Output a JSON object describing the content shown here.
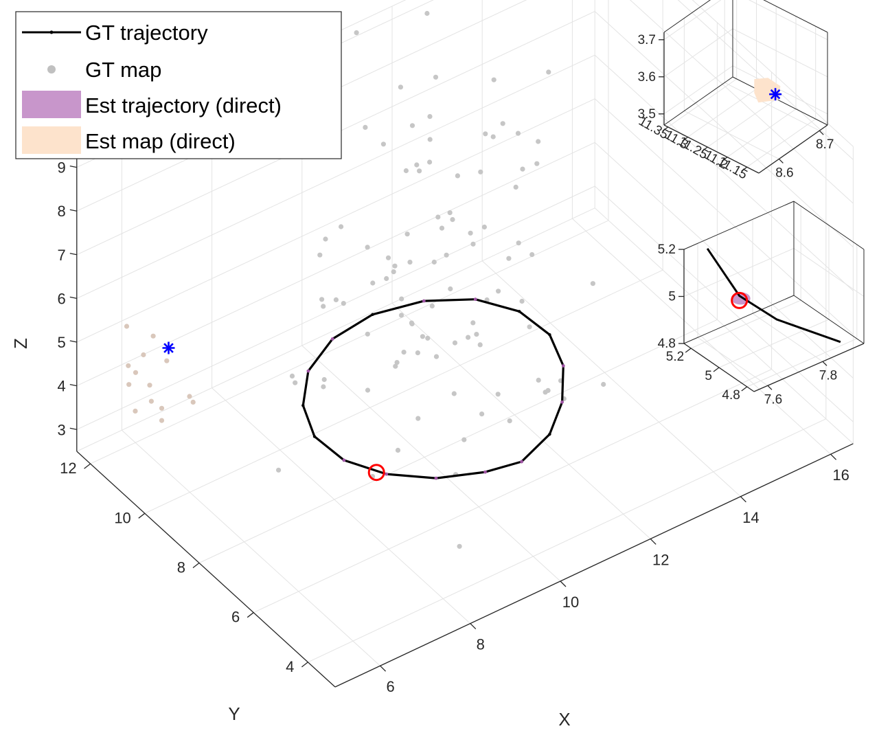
{
  "chart_data": [
    {
      "type": "scatter3d",
      "title": "",
      "xlabel": "X",
      "ylabel": "Y",
      "zlabel": "Z",
      "xlim": [
        5,
        16.5
      ],
      "ylim": [
        3,
        12.5
      ],
      "zlim": [
        2.5,
        9.3
      ],
      "xticks": [
        6,
        8,
        10,
        12,
        14,
        16
      ],
      "yticks": [
        4,
        6,
        8,
        10,
        12
      ],
      "zticks": [
        3,
        4,
        5,
        6,
        7,
        8,
        9
      ],
      "grid": true,
      "legend_position": "top-left",
      "legend": [
        {
          "label": "GT trajectory",
          "style": "line-dot",
          "color": "#000000"
        },
        {
          "label": "GT map",
          "style": "dot",
          "color": "#c0c0c0"
        },
        {
          "label": "Est trajectory (direct)",
          "style": "patch",
          "color": "#c896cb"
        },
        {
          "label": "Est map (direct)",
          "style": "patch",
          "color": "#fde3cc"
        }
      ],
      "series": [
        {
          "name": "GT trajectory",
          "points": [
            [
              10.3,
              4.92,
              4.0
            ],
            [
              9.6,
              5.1,
              4.0
            ],
            [
              8.78,
              5.55,
              4.0
            ],
            [
              8.12,
              6.28,
              4.0
            ],
            [
              7.72,
              7.18,
              4.0
            ],
            [
              7.67,
              8.18,
              4.0
            ],
            [
              8.0,
              9.15,
              4.0
            ],
            [
              8.63,
              10.0,
              4.0
            ],
            [
              9.5,
              10.55,
              4.0
            ],
            [
              10.48,
              10.7,
              4.0
            ],
            [
              11.45,
              10.42,
              4.0
            ],
            [
              12.23,
              9.82,
              4.0
            ],
            [
              12.68,
              8.95,
              4.0
            ],
            [
              12.75,
              7.95,
              4.0
            ],
            [
              12.45,
              6.95,
              4.0
            ],
            [
              11.85,
              6.0,
              4.0
            ],
            [
              11.15,
              5.3,
              4.0
            ],
            [
              10.3,
              4.92,
              4.0
            ]
          ]
        },
        {
          "name": "GT map",
          "points": [
            [
              11.83,
              10.22,
              4.98
            ],
            [
              9.29,
              10.46,
              6.44
            ],
            [
              10.98,
              11.02,
              4.4
            ],
            [
              9.76,
              10.85,
              4.6
            ],
            [
              10.96,
              7.48,
              3.32
            ],
            [
              11.09,
              9.52,
              4.57
            ],
            [
              6.9,
              7.62,
              5.92
            ],
            [
              8.92,
              4.92,
              2.73
            ],
            [
              12.92,
              10.63,
              4.86
            ],
            [
              11.94,
              10.26,
              4.13
            ],
            [
              11.0,
              11.83,
              7.39
            ],
            [
              10.02,
              9.12,
              6.23
            ],
            [
              12.07,
              6.88,
              3.66
            ],
            [
              13.72,
              11.06,
              3.51
            ],
            [
              11.31,
              8.12,
              4.37
            ],
            [
              9.5,
              9.07,
              6.12
            ],
            [
              13.88,
              10.29,
              6.04
            ],
            [
              11.99,
              12.17,
              7.64
            ],
            [
              14.03,
              8.48,
              4.25
            ],
            [
              9.85,
              8.76,
              4.31
            ],
            [
              14.35,
              10.64,
              7.71
            ],
            [
              11.72,
              11.29,
              7.39
            ],
            [
              11.08,
              9.29,
              6.74
            ],
            [
              13.21,
              9.36,
              4.81
            ],
            [
              13.05,
              11.26,
              4.05
            ],
            [
              11.81,
              10.06,
              6.05
            ],
            [
              9.24,
              5.59,
              3.84
            ],
            [
              9.31,
              8.95,
              7.1
            ],
            [
              11.93,
              10.99,
              7.14
            ],
            [
              12.05,
              9.33,
              7.28
            ],
            [
              14.6,
              12.01,
              4.59
            ],
            [
              11.18,
              11.28,
              4.63
            ],
            [
              10.13,
              8.28,
              5.04
            ],
            [
              10.9,
              9.05,
              3.77
            ],
            [
              9.26,
              7.84,
              5.03
            ],
            [
              12.02,
              6.33,
              4.22
            ],
            [
              9.14,
              10.42,
              6.17
            ],
            [
              12.93,
              6.27,
              3.73
            ],
            [
              9.28,
              7.04,
              4.28
            ],
            [
              11.7,
              8.1,
              5.42
            ],
            [
              9.35,
              9.99,
              6.96
            ],
            [
              13.51,
              9.63,
              7.1
            ],
            [
              12.99,
              9.59,
              6.33
            ],
            [
              11.23,
              6.9,
              3.36
            ],
            [
              14.26,
              11.61,
              5.8
            ],
            [
              9.34,
              10.68,
              4.91
            ],
            [
              12.05,
              9.48,
              3.48
            ],
            [
              13.06,
              10.54,
              6.91
            ],
            [
              12.29,
              6.66,
              3.49
            ],
            [
              12.75,
              8.69,
              3.76
            ],
            [
              11.91,
              12.67,
              6.09
            ],
            [
              11.36,
              12.75,
              8.86
            ],
            [
              11.93,
              9.41,
              3.84
            ],
            [
              9.8,
              8.51,
              5.93
            ],
            [
              10.86,
              8.3,
              4.53
            ],
            [
              12.74,
              12.44,
              8.81
            ],
            [
              10.87,
              10.07,
              6.01
            ],
            [
              12.25,
              7.53,
              3.44
            ],
            [
              10.6,
              7.9,
              3.72
            ],
            [
              10.64,
              8.94,
              4.38
            ],
            [
              9.34,
              8.99,
              3.79
            ],
            [
              8.11,
              8.55,
              4.88
            ],
            [
              7.38,
              8.52,
              5.33
            ],
            [
              13.6,
              10.5,
              4.24
            ],
            [
              10.28,
              9.31,
              4.87
            ],
            [
              8.58,
              6.62,
              4.13
            ],
            [
              12.3,
              9.51,
              4.13
            ],
            [
              11.29,
              7.43,
              3.64
            ],
            [
              12.31,
              7.38,
              3.22
            ],
            [
              11.88,
              10.47,
              5.43
            ],
            [
              12.72,
              12.09,
              7.56
            ],
            [
              8.5,
              9.23,
              4.14
            ],
            [
              6.75,
              7.98,
              3.79
            ],
            [
              8.92,
              8.3,
              5.67
            ],
            [
              12.76,
              12.37,
              6.48
            ],
            [
              13.48,
              11.21,
              7.63
            ],
            [
              12.5,
              11.95,
              5.8
            ],
            [
              10.13,
              8.97,
              4.29
            ],
            [
              11.65,
              9.04,
              6.24
            ],
            [
              9.39,
              10.71,
              4.71
            ],
            [
              12.06,
              10.19,
              6.7
            ],
            [
              12.23,
              11.88,
              5.77
            ],
            [
              13.66,
              11.82,
              5.96
            ],
            [
              14.18,
              12.04,
              5.82
            ],
            [
              10.33,
              8.79,
              4.28
            ],
            [
              10.12,
              9.33,
              5.93
            ],
            [
              11.28,
              10.65,
              4.84
            ],
            [
              8.09,
              6.74,
              3.7
            ],
            [
              8.64,
              8.72,
              6.27
            ],
            [
              11.78,
              11.62,
              6.14
            ],
            [
              10.44,
              7.27,
              3.1
            ],
            [
              10.99,
              9.28,
              5.76
            ],
            [
              11.0,
              8.05,
              4.73
            ],
            [
              11.4,
              10.77,
              3.3
            ],
            [
              10.84,
              9.86,
              4.11
            ],
            [
              13.03,
              9.43,
              3.79
            ],
            [
              12.19,
              11.91,
              5.91
            ],
            [
              12.84,
              11.67,
              4.48
            ]
          ]
        },
        {
          "name": "Est map (direct)",
          "points": [
            [
              5.57,
              11.28,
              4.72
            ],
            [
              5.51,
              11.45,
              4.81
            ],
            [
              5.48,
              11.46,
              5.72
            ],
            [
              6.11,
              11.03,
              4.87
            ],
            [
              5.55,
              11.26,
              3.86
            ],
            [
              5.42,
              11.28,
              4.52
            ],
            [
              5.67,
              10.8,
              5.78
            ],
            [
              5.78,
              11.34,
              4.99
            ],
            [
              6.52,
              10.74,
              3.89
            ],
            [
              6.44,
              10.74,
              4.06
            ],
            [
              5.81,
              11.1,
              4.05
            ],
            [
              5.66,
              10.47,
              4.32
            ],
            [
              5.66,
              10.47,
              4.04
            ],
            [
              5.58,
              10.78,
              4.71
            ]
          ]
        },
        {
          "name": "Est trajectory (direct)",
          "points": [
            [
              8.63,
              10.0,
              4.0
            ],
            [
              8.12,
              6.28,
              4.0
            ],
            [
              7.72,
              7.18,
              4.0
            ],
            [
              9.5,
              10.55,
              4.0
            ],
            [
              11.45,
              10.42,
              4.0
            ],
            [
              12.23,
              9.82,
              4.0
            ],
            [
              12.45,
              6.95,
              4.0
            ],
            [
              11.85,
              6.0,
              4.0
            ],
            [
              10.3,
              4.92,
              4.0
            ],
            [
              9.6,
              5.1,
              4.0
            ],
            [
              8.78,
              5.55,
              4.0
            ]
          ]
        }
      ],
      "markers": [
        {
          "type": "star",
          "color": "#0000ff",
          "at": [
            6.35,
            11.36,
            4.86
          ]
        },
        {
          "type": "circle",
          "color": "#ff0000",
          "at": [
            8.0,
            6.45,
            4.0
          ]
        }
      ]
    },
    {
      "type": "scatter3d",
      "title": "",
      "xlabel": "",
      "ylabel": "",
      "zlabel": "",
      "xlim": [
        8.55,
        8.72
      ],
      "ylim": [
        11.12,
        11.36
      ],
      "zlim": [
        3.47,
        3.72
      ],
      "xticks": [
        8.6,
        8.7
      ],
      "yticks": [
        11.15,
        11.2,
        11.25,
        11.3,
        11.35
      ],
      "zticks": [
        3.5,
        3.6,
        3.7
      ],
      "grid": true,
      "markers": [
        {
          "type": "star",
          "color": "#0000ff",
          "at": [
            8.63,
            11.16,
            3.6
          ]
        },
        {
          "type": "patch",
          "color": "#fde3cc",
          "label": "Est map (direct)"
        }
      ]
    },
    {
      "type": "scatter3d",
      "title": "",
      "xlabel": "",
      "ylabel": "",
      "zlabel": "",
      "xlim": [
        7.55,
        7.95
      ],
      "ylim": [
        4.75,
        5.25
      ],
      "zlim": [
        4.8,
        5.2
      ],
      "xticks": [
        7.6,
        7.8
      ],
      "yticks": [
        4.8,
        5,
        5.2
      ],
      "zticks": [
        4.8,
        5,
        5.2
      ],
      "grid": true,
      "series": [
        {
          "name": "GT trajectory",
          "points": [
            [
              7.62,
              5.22,
              5.18
            ],
            [
              7.66,
              5.07,
              5.02
            ],
            [
              7.72,
              4.92,
              4.95
            ],
            [
              7.88,
              4.78,
              4.83
            ]
          ]
        }
      ],
      "markers": [
        {
          "type": "circle",
          "color": "#ff0000",
          "at": [
            7.66,
            5.07,
            5.0
          ]
        },
        {
          "type": "patch",
          "color": "#c896cb",
          "label": "Est trajectory (direct)"
        }
      ]
    }
  ]
}
